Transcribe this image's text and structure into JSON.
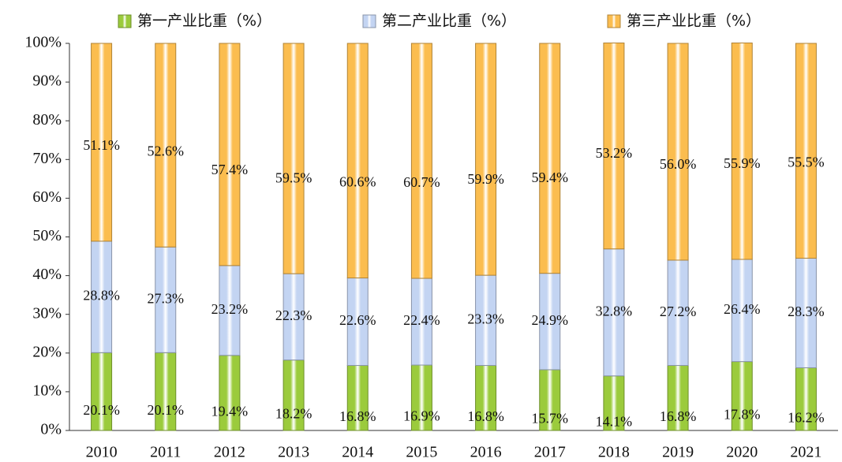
{
  "chart_data": {
    "type": "stacked_bar",
    "categories": [
      "2010",
      "2011",
      "2012",
      "2013",
      "2014",
      "2015",
      "2016",
      "2017",
      "2018",
      "2019",
      "2020",
      "2021"
    ],
    "series": [
      {
        "name": "第一产业比重（%）",
        "color": "#9bcb3c",
        "values": [
          20.1,
          20.1,
          19.4,
          18.2,
          16.8,
          16.9,
          16.8,
          15.7,
          14.1,
          16.8,
          17.8,
          16.2
        ],
        "value_labels": [
          "20.1%",
          "20.1%",
          "19.4%",
          "18.2%",
          "16.8%",
          "16.9%",
          "16.8%",
          "15.7%",
          "14.1%",
          "16.8%",
          "17.8%",
          "16.2%"
        ]
      },
      {
        "name": "第二产业比重（%）",
        "color": "#c3d4f2",
        "values": [
          28.8,
          27.3,
          23.2,
          22.3,
          22.6,
          22.4,
          23.3,
          24.9,
          32.8,
          27.2,
          26.4,
          28.3
        ],
        "value_labels": [
          "28.8%",
          "27.3%",
          "23.2%",
          "22.3%",
          "22.6%",
          "22.4%",
          "23.3%",
          "24.9%",
          "32.8%",
          "27.2%",
          "26.4%",
          "28.3%"
        ]
      },
      {
        "name": "第三产业比重（%）",
        "color": "#fbbd4f",
        "values": [
          51.1,
          52.6,
          57.4,
          59.5,
          60.6,
          60.7,
          59.9,
          59.4,
          53.2,
          56.0,
          55.9,
          55.5
        ],
        "value_labels": [
          "51.1%",
          "52.6%",
          "57.4%",
          "59.5%",
          "60.6%",
          "60.7%",
          "59.9%",
          "59.4%",
          "53.2%",
          "56.0%",
          "55.9%",
          "55.5%"
        ]
      }
    ],
    "ylim": [
      0,
      100
    ],
    "yticks": [
      {
        "value": 0,
        "label": "0%"
      },
      {
        "value": 10,
        "label": "10%"
      },
      {
        "value": 20,
        "label": "20%"
      },
      {
        "value": 30,
        "label": "30%"
      },
      {
        "value": 40,
        "label": "40%"
      },
      {
        "value": 50,
        "label": "50%"
      },
      {
        "value": 60,
        "label": "60%"
      },
      {
        "value": 70,
        "label": "70%"
      },
      {
        "value": 80,
        "label": "80%"
      },
      {
        "value": 90,
        "label": "90%"
      },
      {
        "value": 100,
        "label": "100%"
      }
    ],
    "legend": "top"
  }
}
